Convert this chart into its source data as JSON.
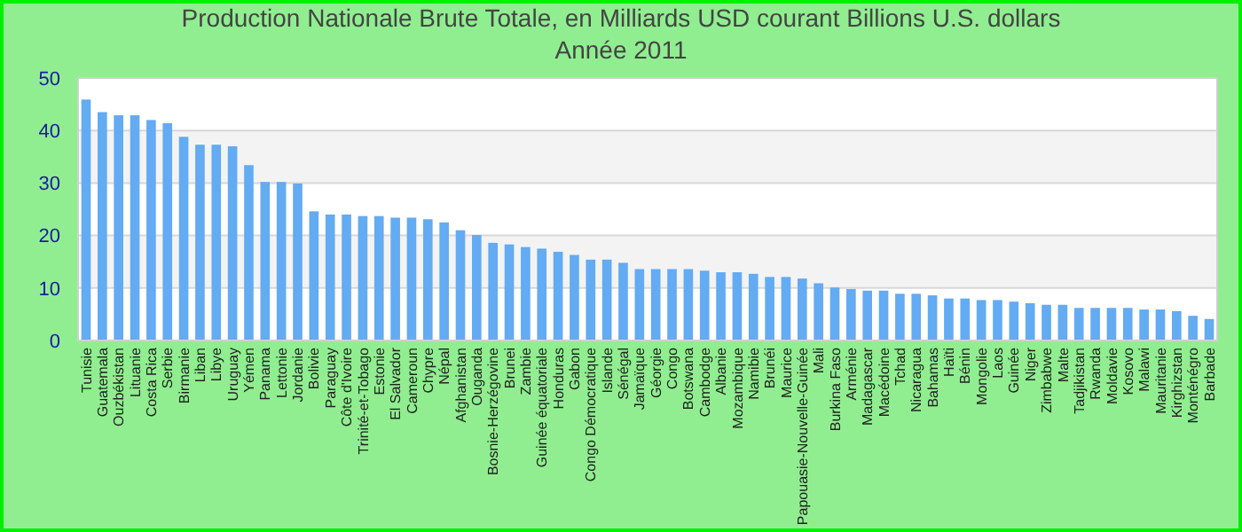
{
  "chart_data": {
    "type": "bar",
    "title": "Production Nationale Brute Totale, en Milliards USD courant Billions U.S. dollars",
    "subtitle": "Année 2011",
    "categories": [
      "Tunisie",
      "Guatemala",
      "Ouzbékistan",
      "Lituanie",
      "Costa Rica",
      "Serbie",
      "Birmanie",
      "Liban",
      "Libye",
      "Uruguay",
      "Yémen",
      "Panama",
      "Lettonie",
      "Jordanie",
      "Bolivie",
      "Paraguay",
      "Côte d'Ivoire",
      "Trinité-et-Tobago",
      "Estonie",
      "El Salvador",
      "Cameroun",
      "Chypre",
      "Népal",
      "Afghanistan",
      "Ouganda",
      "Bosnie-Herzégovine",
      "Brunei",
      "Zambie",
      "Guinée équatoriale",
      "Honduras",
      "Gabon",
      "Congo Démocratique",
      "Islande",
      "Sénégal",
      "Jamaïque",
      "Géorgie",
      "Congo",
      "Botswana",
      "Cambodge",
      "Albanie",
      "Mozambique",
      "Namibie",
      "Brunéi",
      "Maurice",
      "Papouasie-Nouvelle-Guinée",
      "Mali",
      "Burkina Faso",
      "Arménie",
      "Madagascar",
      "Macédoine",
      "Tchad",
      "Nicaragua",
      "Bahamas",
      "Haïti",
      "Bénin",
      "Mongolie",
      "Laos",
      "Guinée",
      "Niger",
      "Zimbabwe",
      "Malte",
      "Tadjikistan",
      "Rwanda",
      "Moldavie",
      "Kosovo",
      "Malawi",
      "Mauritanie",
      "Kirghizstan",
      "Monténégro",
      "Barbade"
    ],
    "values": [
      45.9,
      43.5,
      42.9,
      42.9,
      42.0,
      41.4,
      38.8,
      37.3,
      37.3,
      37.0,
      33.4,
      30.2,
      30.2,
      29.9,
      24.6,
      24.0,
      24.0,
      23.7,
      23.7,
      23.4,
      23.4,
      23.1,
      22.5,
      21.0,
      20.1,
      18.6,
      18.3,
      17.8,
      17.5,
      16.9,
      16.3,
      15.4,
      15.4,
      14.8,
      13.6,
      13.6,
      13.6,
      13.6,
      13.3,
      13.0,
      13.0,
      12.7,
      12.1,
      12.1,
      11.8,
      10.9,
      10.1,
      9.8,
      9.5,
      9.5,
      8.9,
      8.9,
      8.6,
      8.0,
      8.0,
      7.7,
      7.7,
      7.4,
      7.1,
      6.8,
      6.8,
      6.2,
      6.2,
      6.2,
      6.2,
      5.9,
      5.9,
      5.6,
      4.7,
      4.1
    ],
    "color": "#63abf3",
    "ylim": [
      0,
      50
    ],
    "yticks": [
      0,
      10,
      20,
      30,
      40,
      50
    ],
    "grid": "y"
  }
}
